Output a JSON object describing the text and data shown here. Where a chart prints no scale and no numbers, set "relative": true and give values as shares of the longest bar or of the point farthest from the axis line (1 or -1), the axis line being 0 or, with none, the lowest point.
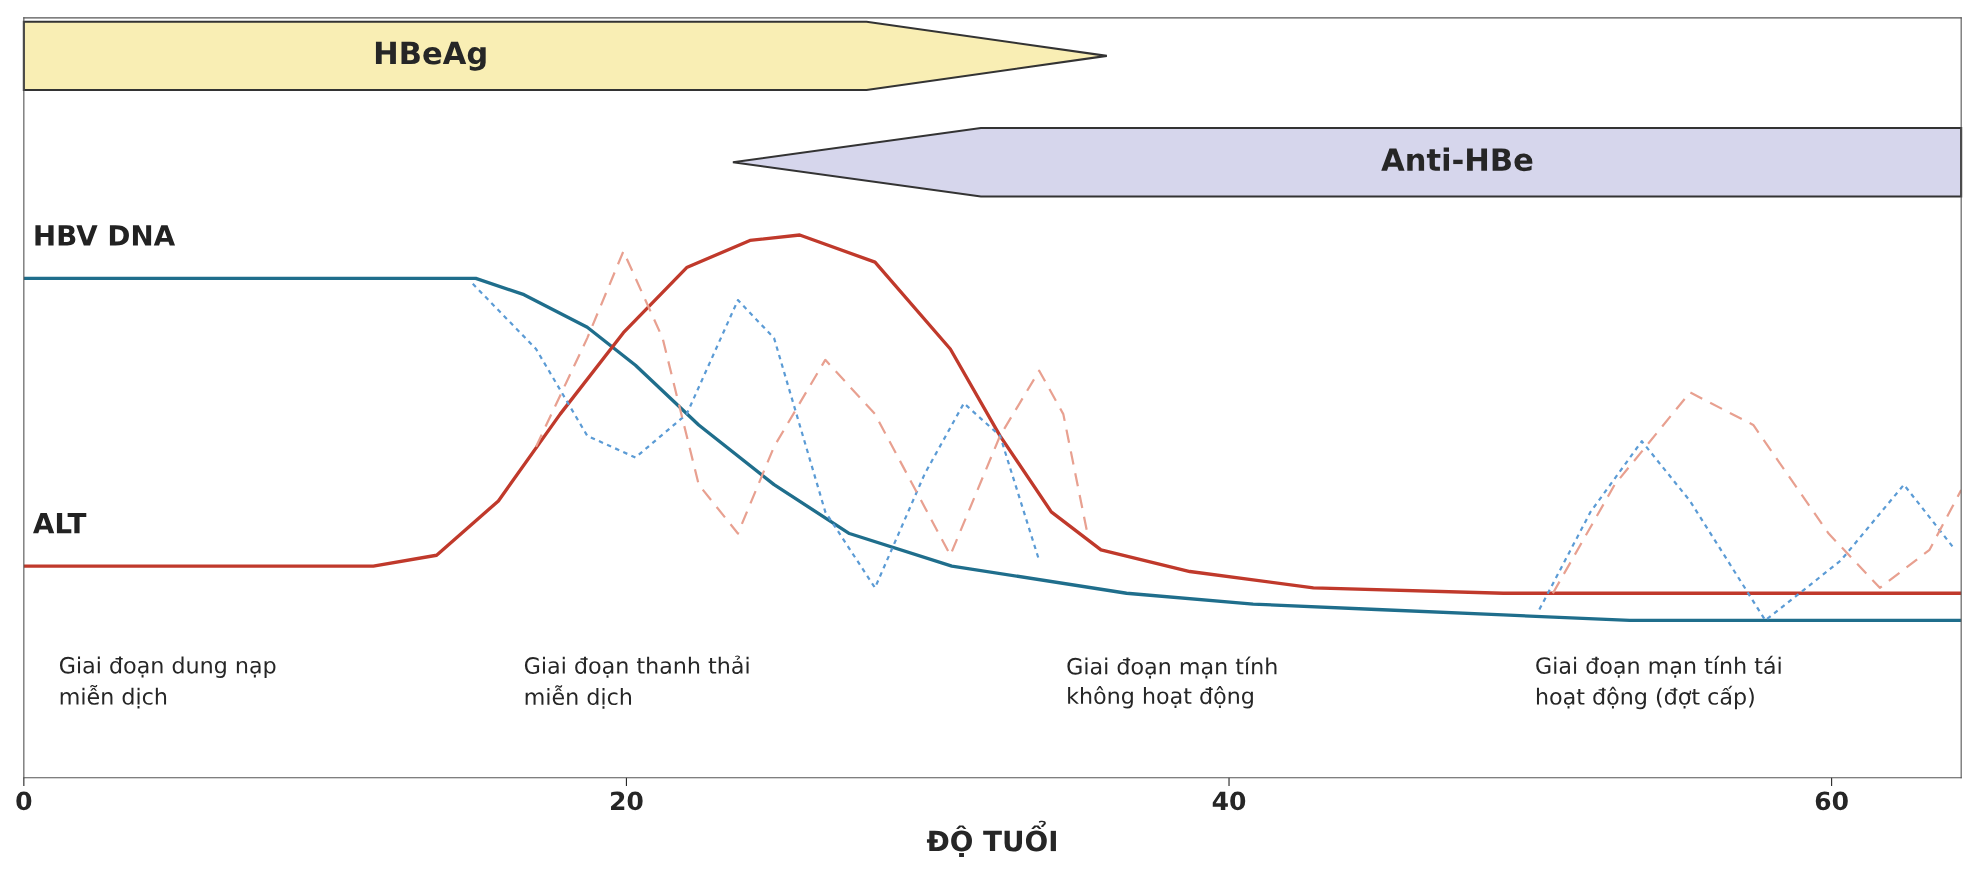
{
  "chart_data": {
    "type": "line",
    "relative": true,
    "xlabel": "ĐỘ TUỔI",
    "xlim": [
      0,
      64.3
    ],
    "xticks": [
      0,
      20,
      40,
      60
    ],
    "tick_labels": "x",
    "grid": false,
    "legend": false,
    "marker": "none",
    "series": [
      {
        "name": "HBV DNA",
        "color": "#1f6e8c",
        "line_style": "solid",
        "x": [
          0,
          15,
          16.6,
          18.7,
          20.3,
          22.4,
          24.9,
          27.4,
          30.8,
          36.6,
          40.8,
          44.9,
          49.1,
          53.3,
          64.3
        ],
        "values": [
          0.92,
          0.92,
          0.89,
          0.83,
          0.76,
          0.65,
          0.54,
          0.45,
          0.39,
          0.34,
          0.32,
          0.31,
          0.3,
          0.29,
          0.29
        ]
      },
      {
        "name": "ALT",
        "color": "#c0392b",
        "line_style": "solid",
        "x": [
          0,
          11.6,
          13.7,
          15.75,
          17.8,
          19.9,
          22,
          24.1,
          25.75,
          28.25,
          30.75,
          32.4,
          34.1,
          35.75,
          38.7,
          42.8,
          49.1,
          64.3
        ],
        "values": [
          0.39,
          0.39,
          0.41,
          0.51,
          0.67,
          0.82,
          0.94,
          0.99,
          1.0,
          0.95,
          0.79,
          0.63,
          0.49,
          0.42,
          0.38,
          0.35,
          0.34,
          0.34
        ]
      },
      {
        "color": "#5b9bd5",
        "line_style": "dotted",
        "x": [
          14.9,
          17,
          18.7,
          20.3,
          22,
          23.7,
          24.9,
          26.6,
          28.25,
          29.9,
          31.2,
          32.4,
          33.7,
          42,
          50.3,
          52,
          53.7,
          55.3,
          57.8,
          60.3,
          62.4,
          64.1
        ],
        "values": [
          0.91,
          0.79,
          0.63,
          0.59,
          0.67,
          0.88,
          0.81,
          0.49,
          0.35,
          0.56,
          0.69,
          0.63,
          0.4,
          null,
          0.31,
          0.49,
          0.62,
          0.51,
          0.29,
          0.4,
          0.54,
          0.42
        ]
      },
      {
        "color": "#e8a090",
        "line_style": "dashed",
        "x": [
          17,
          18.7,
          19.9,
          21.2,
          22.4,
          23.7,
          24.9,
          26.6,
          28.25,
          30.75,
          32.4,
          33.7,
          34.5,
          35.3,
          43,
          50.75,
          52.8,
          55.3,
          57.4,
          59.9,
          61.6,
          63.25,
          64.3
        ],
        "values": [
          0.61,
          0.81,
          0.97,
          0.81,
          0.54,
          0.45,
          0.61,
          0.77,
          0.67,
          0.41,
          0.63,
          0.75,
          0.67,
          0.45,
          null,
          0.34,
          0.54,
          0.71,
          0.65,
          0.45,
          0.35,
          0.42,
          0.53
        ]
      }
    ],
    "annotations": [
      "HBeAg",
      "Anti-HBe",
      "Giai đoạn dung nạp\nmiễn dịch",
      "Giai đoạn thanh thải\nmiễn dịch",
      "Giai đoạn mạn tính\nkhông hoạt động",
      "Giai đoạn mạn tính tái\nhoạt động (đợt cấp)"
    ]
  }
}
